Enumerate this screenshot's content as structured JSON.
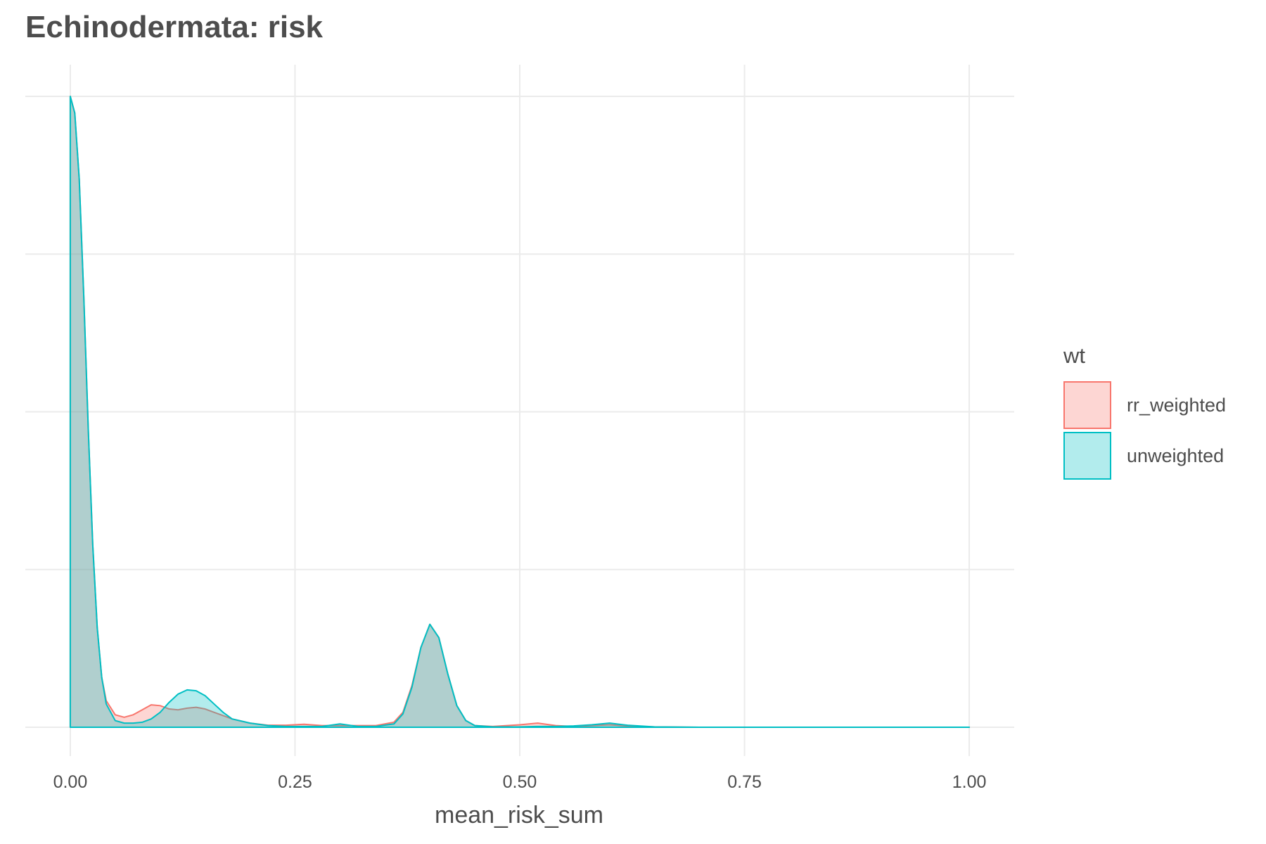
{
  "chart_data": {
    "type": "area",
    "title": "Echinodermata: risk",
    "xlabel": "mean_risk_sum",
    "ylabel": "",
    "xlim": [
      -0.05,
      1.05
    ],
    "ylim": [
      0,
      38
    ],
    "x_ticks": [
      0,
      0.25,
      0.5,
      0.75,
      1
    ],
    "x_tick_labels": [
      "0.00",
      "0.25",
      "0.50",
      "0.75",
      "1.00"
    ],
    "y_gridlines": [
      0,
      9.5,
      19,
      28.5,
      38
    ],
    "grid": true,
    "legend": {
      "title": "wt",
      "position": "right"
    },
    "series": [
      {
        "name": "rr_weighted",
        "color": "#F8766D",
        "fill": "rgba(248,118,109,0.3)",
        "x": [
          0,
          0.005,
          0.01,
          0.015,
          0.02,
          0.025,
          0.03,
          0.035,
          0.04,
          0.05,
          0.06,
          0.07,
          0.08,
          0.09,
          0.1,
          0.11,
          0.12,
          0.13,
          0.14,
          0.15,
          0.16,
          0.17,
          0.18,
          0.2,
          0.22,
          0.24,
          0.26,
          0.28,
          0.3,
          0.32,
          0.34,
          0.36,
          0.37,
          0.38,
          0.39,
          0.4,
          0.41,
          0.42,
          0.43,
          0.44,
          0.45,
          0.47,
          0.5,
          0.52,
          0.54,
          0.56,
          0.58,
          0.6,
          0.62,
          0.65,
          0.7,
          0.8,
          0.9,
          1.0
        ],
        "y": [
          38,
          37,
          33,
          26,
          18,
          11,
          6,
          3,
          1.6,
          0.75,
          0.6,
          0.75,
          1.05,
          1.35,
          1.3,
          1.1,
          1.05,
          1.15,
          1.2,
          1.1,
          0.9,
          0.7,
          0.5,
          0.25,
          0.12,
          0.12,
          0.18,
          0.1,
          0.1,
          0.1,
          0.1,
          0.3,
          0.9,
          2.5,
          4.8,
          6.2,
          5.4,
          3.2,
          1.3,
          0.4,
          0.1,
          0.05,
          0.15,
          0.25,
          0.1,
          0.05,
          0.1,
          0.15,
          0.08,
          0.02,
          0,
          0,
          0,
          0
        ]
      },
      {
        "name": "unweighted",
        "color": "#00BFC4",
        "fill": "rgba(0,191,196,0.3)",
        "x": [
          0,
          0.005,
          0.01,
          0.015,
          0.02,
          0.025,
          0.03,
          0.035,
          0.04,
          0.05,
          0.06,
          0.07,
          0.08,
          0.09,
          0.1,
          0.11,
          0.12,
          0.13,
          0.14,
          0.15,
          0.16,
          0.17,
          0.18,
          0.2,
          0.22,
          0.24,
          0.26,
          0.28,
          0.3,
          0.32,
          0.34,
          0.36,
          0.37,
          0.38,
          0.39,
          0.4,
          0.41,
          0.42,
          0.43,
          0.44,
          0.45,
          0.47,
          0.5,
          0.52,
          0.54,
          0.56,
          0.58,
          0.6,
          0.62,
          0.65,
          0.7,
          0.8,
          0.9,
          1.0
        ],
        "y": [
          38,
          37,
          33,
          26,
          18,
          11,
          6,
          3,
          1.4,
          0.4,
          0.25,
          0.25,
          0.3,
          0.5,
          0.9,
          1.5,
          2.0,
          2.25,
          2.2,
          1.9,
          1.4,
          0.9,
          0.5,
          0.25,
          0.1,
          0.05,
          0.05,
          0.05,
          0.2,
          0.05,
          0.05,
          0.2,
          0.8,
          2.4,
          4.8,
          6.2,
          5.4,
          3.2,
          1.3,
          0.4,
          0.1,
          0.02,
          0.02,
          0.05,
          0.05,
          0.08,
          0.15,
          0.25,
          0.12,
          0.02,
          0,
          0,
          0,
          0
        ]
      }
    ]
  }
}
